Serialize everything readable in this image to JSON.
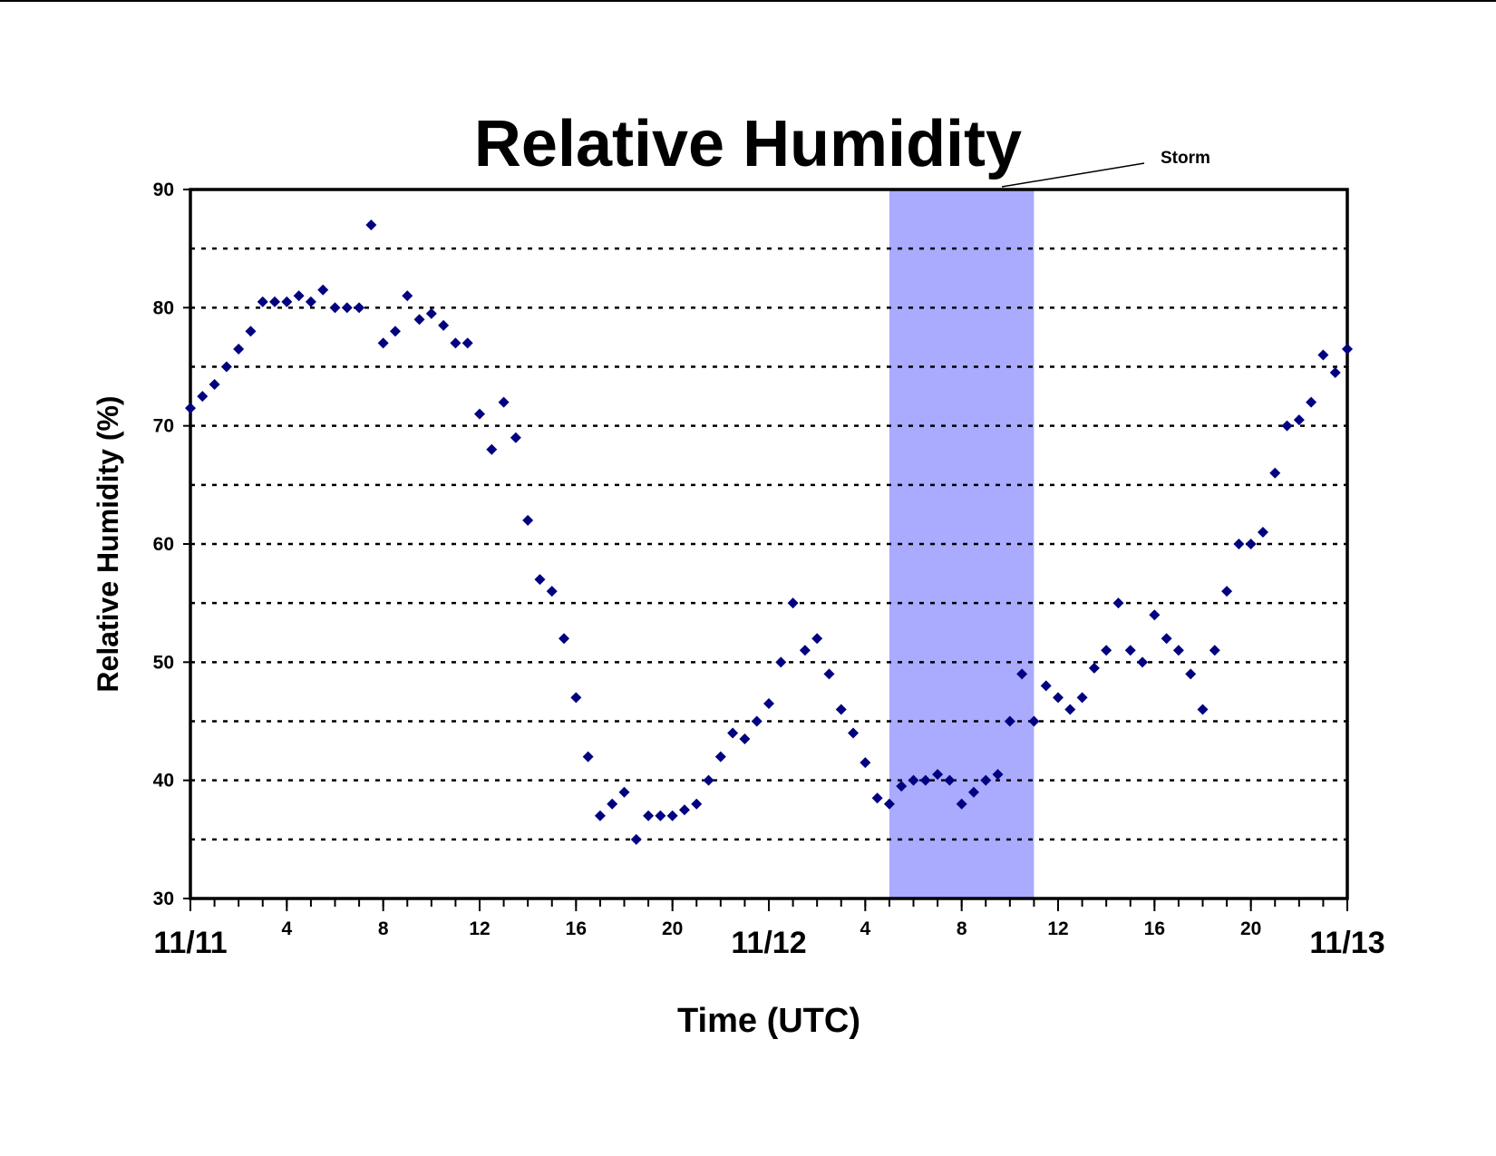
{
  "chart_data": {
    "type": "scatter",
    "title": "Relative Humidity",
    "xlabel": "Time (UTC)",
    "ylabel": "Relative Humidity (%)",
    "annotation": {
      "text": "Storm",
      "span": [
        29,
        35
      ],
      "color": "#aaaaff"
    },
    "color": "#000080",
    "xlim": [
      0,
      48
    ],
    "ylim": [
      30,
      90
    ],
    "yticks": [
      30,
      40,
      50,
      60,
      70,
      80,
      90
    ],
    "ygrid": [
      35,
      40,
      45,
      50,
      55,
      60,
      65,
      70,
      75,
      80,
      85
    ],
    "xticks": [
      {
        "value": 0,
        "label": "11/11"
      },
      4,
      8,
      12,
      16,
      20,
      {
        "value": 24,
        "label": "11/12"
      },
      {
        "value": 28,
        "label": "4"
      },
      {
        "value": 32,
        "label": "8"
      },
      {
        "value": 36,
        "label": "12"
      },
      {
        "value": 40,
        "label": "16"
      },
      {
        "value": 44,
        "label": "20"
      },
      {
        "value": 48,
        "label": "11/13"
      }
    ],
    "xticks_minor": [
      0,
      1,
      2,
      3,
      4,
      5,
      6,
      7,
      8,
      9,
      10,
      11,
      12,
      13,
      14,
      15,
      16,
      17,
      18,
      19,
      20,
      21,
      22,
      23,
      24,
      25,
      26,
      27,
      28,
      29,
      30,
      31,
      32,
      33,
      34,
      35,
      36,
      37,
      38,
      39,
      40,
      41,
      42,
      43,
      44,
      45,
      46,
      47,
      48
    ],
    "x": [
      0,
      0.5,
      1,
      1.5,
      2,
      2.5,
      3,
      3.5,
      4,
      4.5,
      5,
      5.5,
      6,
      6.5,
      7,
      7.5,
      8,
      8.5,
      9,
      9.5,
      10,
      10.5,
      11,
      11.5,
      12,
      12.5,
      13,
      13.5,
      14,
      14.5,
      15,
      15.5,
      16,
      16.5,
      17,
      17.5,
      18,
      18.5,
      19,
      19.5,
      20,
      20.5,
      21,
      21.5,
      22,
      22.5,
      23,
      23.5,
      24,
      24.5,
      25,
      25.5,
      26,
      26.5,
      27,
      27.5,
      28,
      28.5,
      29,
      29.5,
      30,
      30.5,
      31,
      31.5,
      32,
      32.5,
      33,
      33.5,
      34,
      34.5,
      35,
      35.5,
      36,
      36.5,
      37,
      37.5,
      38,
      38.5,
      39,
      39.5,
      40,
      40.5,
      41,
      41.5,
      42,
      42.5,
      43,
      43.5,
      44,
      44.5,
      45,
      45.5,
      46,
      46.5,
      47,
      47.5,
      48
    ],
    "values": [
      71.5,
      72.5,
      73.5,
      75,
      76.5,
      78,
      80.5,
      80.5,
      80.5,
      81,
      80.5,
      81.5,
      80,
      80,
      80,
      87,
      77,
      78,
      81,
      79,
      79.5,
      78.5,
      77,
      77,
      71,
      68,
      72,
      69,
      62,
      57,
      56,
      52,
      47,
      42,
      37,
      38,
      39,
      35,
      37,
      37,
      37,
      37.5,
      38,
      40,
      42,
      44,
      43.5,
      45,
      46.5,
      50,
      55,
      51,
      52,
      49,
      46,
      44,
      41.5,
      38.5,
      38,
      39.5,
      40,
      40,
      40.5,
      40,
      38,
      39,
      40,
      40.5,
      45,
      49,
      45,
      48,
      47,
      46,
      47,
      49.5,
      51,
      55,
      51,
      50,
      54,
      52,
      51,
      49,
      46,
      51,
      56,
      60,
      60,
      61,
      66,
      70,
      70.5,
      72,
      76,
      74.5,
      76.5
    ]
  }
}
